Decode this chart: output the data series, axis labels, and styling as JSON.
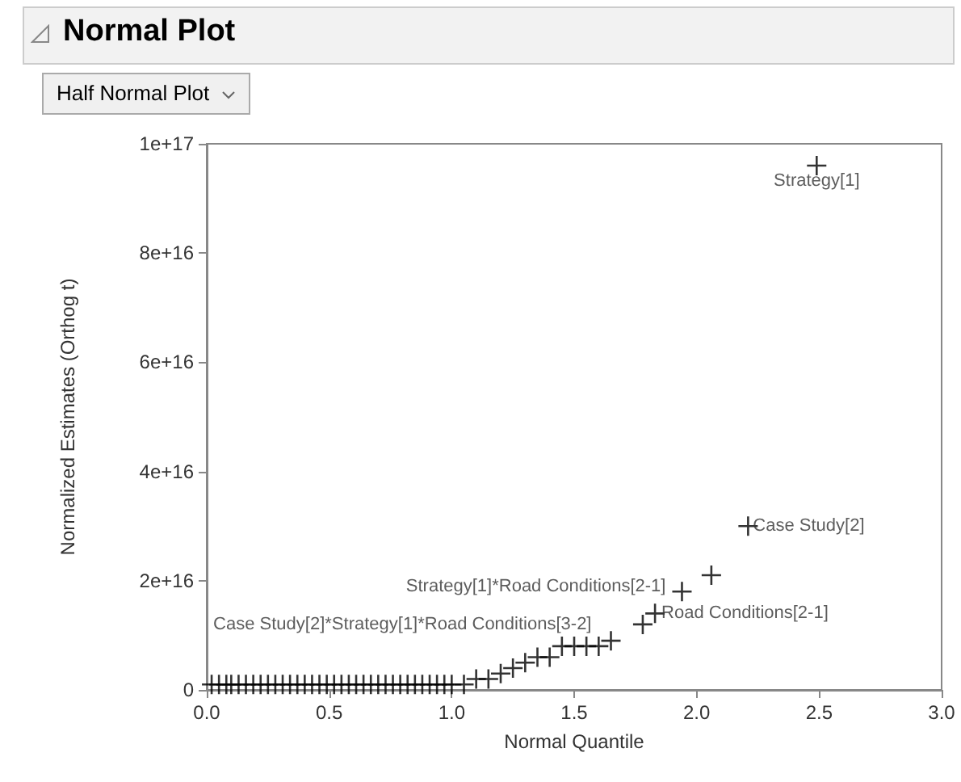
{
  "chart_data": {
    "type": "scatter",
    "title": "Normal Plot",
    "xlabel": "Normal Quantile",
    "ylabel": "Normalized Estimates (Orthog t)",
    "x": [
      0.02,
      0.05,
      0.08,
      0.1,
      0.13,
      0.16,
      0.19,
      0.22,
      0.25,
      0.28,
      0.31,
      0.34,
      0.37,
      0.4,
      0.43,
      0.46,
      0.49,
      0.52,
      0.55,
      0.58,
      0.61,
      0.64,
      0.67,
      0.7,
      0.73,
      0.76,
      0.79,
      0.82,
      0.85,
      0.88,
      0.91,
      0.94,
      0.97,
      1.0,
      1.05,
      1.1,
      1.15,
      1.2,
      1.25,
      1.3,
      1.35,
      1.4,
      1.45,
      1.5,
      1.55,
      1.6,
      1.65,
      1.78,
      1.83,
      1.94,
      2.06,
      2.21,
      2.49
    ],
    "series": [
      {
        "color": "#000000",
        "values": [
          1000000000000000.0,
          1000000000000000.0,
          1000000000000000.0,
          1000000000000000.0,
          1000000000000000.0,
          1000000000000000.0,
          1000000000000000.0,
          1000000000000000.0,
          1000000000000000.0,
          1000000000000000.0,
          1000000000000000.0,
          1000000000000000.0,
          1000000000000000.0,
          1000000000000000.0,
          1000000000000000.0,
          1000000000000000.0,
          1000000000000000.0,
          1000000000000000.0,
          1000000000000000.0,
          1000000000000000.0,
          1000000000000000.0,
          1000000000000000.0,
          1000000000000000.0,
          1000000000000000.0,
          1000000000000000.0,
          1000000000000000.0,
          1000000000000000.0,
          1000000000000000.0,
          1000000000000000.0,
          1000000000000000.0,
          1000000000000000.0,
          1000000000000000.0,
          1000000000000000.0,
          1000000000000000.0,
          1000000000000000.0,
          2000000000000000.0,
          2000000000000000.0,
          3000000000000000.0,
          4000000000000000.0,
          5000000000000000.0,
          6000000000000000.0,
          6000000000000000.0,
          8000000000000000.0,
          8000000000000000.0,
          8000000000000000.0,
          8000000000000000.0,
          9000000000000000.0,
          1.2e+16,
          1.4e+16,
          1.8e+16,
          2.1e+16,
          3e+16,
          9.6e+16
        ]
      }
    ],
    "xlim": [
      0,
      3
    ],
    "xticks": [
      {
        "value": 0,
        "label": "0.0"
      },
      {
        "value": 0.5,
        "label": "0.5"
      },
      {
        "value": 1,
        "label": "1.0"
      },
      {
        "value": 1.5,
        "label": "1.5"
      },
      {
        "value": 2,
        "label": "2.0"
      },
      {
        "value": 2.5,
        "label": "2.5"
      },
      {
        "value": 3,
        "label": "3.0"
      }
    ],
    "ylim": [
      0,
      1e+17
    ],
    "yticks": [
      0,
      {
        "value": 2e+16,
        "label": "2e+16"
      },
      {
        "value": 4e+16,
        "label": "4e+16"
      },
      {
        "value": 6e+16,
        "label": "6e+16"
      },
      {
        "value": 8e+16,
        "label": "8e+16"
      },
      {
        "value": 1e+17,
        "label": "1e+17"
      }
    ],
    "marker": "cross",
    "grid": false,
    "annotations": [
      "Half Normal Plot",
      {
        "text": "Strategy[1]",
        "x": 2.49,
        "y": 9.6e+16
      },
      {
        "text": "Case Study[2]",
        "x": 2.21,
        "y": 3e+16
      },
      {
        "text": "Road Conditions[2-1]",
        "x": 1.83,
        "y": 1.4e+16
      },
      {
        "text": "Strategy[1]*Road Conditions[2-1]",
        "x": 1.94,
        "y": 1.8e+16
      },
      {
        "text": "Case Study[2]*Strategy[1]*Road Conditions[3-2]",
        "x": 1.65,
        "y": 9000000000000000.0
      }
    ]
  }
}
